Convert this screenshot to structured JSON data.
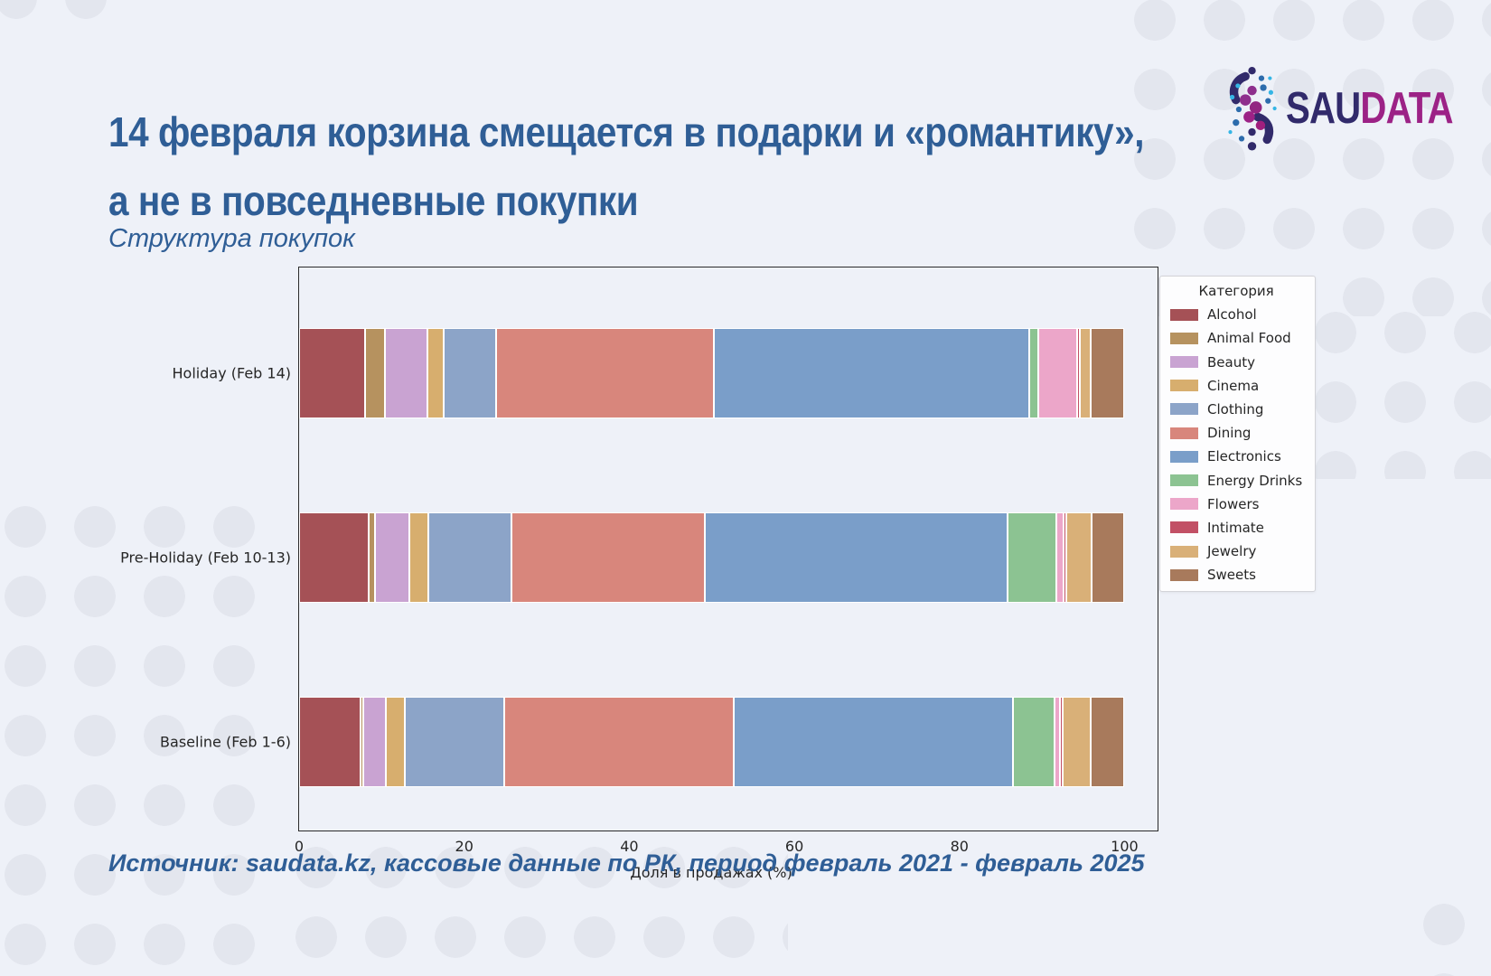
{
  "page": {
    "title_line1": "14 февраля корзина смещается в подарки и «романтику»,",
    "title_line2": "а не в повседневные покупки",
    "subtitle": "Структура покупок",
    "source": "Источник: saudata.kz, кассовые данные по РК, период февраль 2021 - февраль 2025",
    "logo": {
      "part1": "SAU",
      "part2": "DATA"
    }
  },
  "colors": {
    "background": "#eef1f8",
    "background_dots": "#e3e6ee",
    "title_text": "#2f5e96",
    "axis_text": "#262626",
    "plot_border": "#2b2b2b",
    "logo_navy": "#312a6b",
    "logo_magenta": "#9c2286"
  },
  "chart_data": {
    "type": "bar",
    "orientation": "horizontal",
    "stacked": true,
    "title": "Структура покупок",
    "xlabel": "Доля в продажах (%)",
    "ylabel": "",
    "xlim": [
      0,
      104
    ],
    "xticks": [
      0,
      20,
      40,
      60,
      80,
      100
    ],
    "grid": false,
    "legend_title": "Категория",
    "legend_position": "right",
    "categories": [
      "Holiday (Feb 14)",
      "Pre-Holiday (Feb 10-13)",
      "Baseline (Feb 1-6)"
    ],
    "unit": "% of sales",
    "series": [
      {
        "name": "Alcohol",
        "color": "#a55156",
        "values": [
          8.0,
          8.4,
          7.4
        ]
      },
      {
        "name": "Animal Food",
        "color": "#b6925f",
        "values": [
          2.4,
          0.8,
          0.4
        ]
      },
      {
        "name": "Beauty",
        "color": "#c9a3d2",
        "values": [
          5.2,
          4.2,
          2.7
        ]
      },
      {
        "name": "Cinema",
        "color": "#d7ae6e",
        "values": [
          1.9,
          2.3,
          2.3
        ]
      },
      {
        "name": "Clothing",
        "color": "#8ca4c8",
        "values": [
          6.4,
          10.0,
          12.1
        ]
      },
      {
        "name": "Dining",
        "color": "#d8867c",
        "values": [
          26.3,
          23.5,
          27.8
        ]
      },
      {
        "name": "Electronics",
        "color": "#7a9ec9",
        "values": [
          38.3,
          36.6,
          33.8
        ]
      },
      {
        "name": "Energy Drinks",
        "color": "#8cc392",
        "values": [
          1.1,
          6.0,
          5.0
        ]
      },
      {
        "name": "Flowers",
        "color": "#eca6c9",
        "values": [
          4.7,
          0.8,
          0.7
        ]
      },
      {
        "name": "Intimate",
        "color": "#c25065",
        "values": [
          0.3,
          0.3,
          0.3
        ]
      },
      {
        "name": "Jewelry",
        "color": "#d9b078",
        "values": [
          1.3,
          3.1,
          3.4
        ]
      },
      {
        "name": "Sweets",
        "color": "#a87a5c",
        "values": [
          4.1,
          4.0,
          4.1
        ]
      }
    ]
  }
}
